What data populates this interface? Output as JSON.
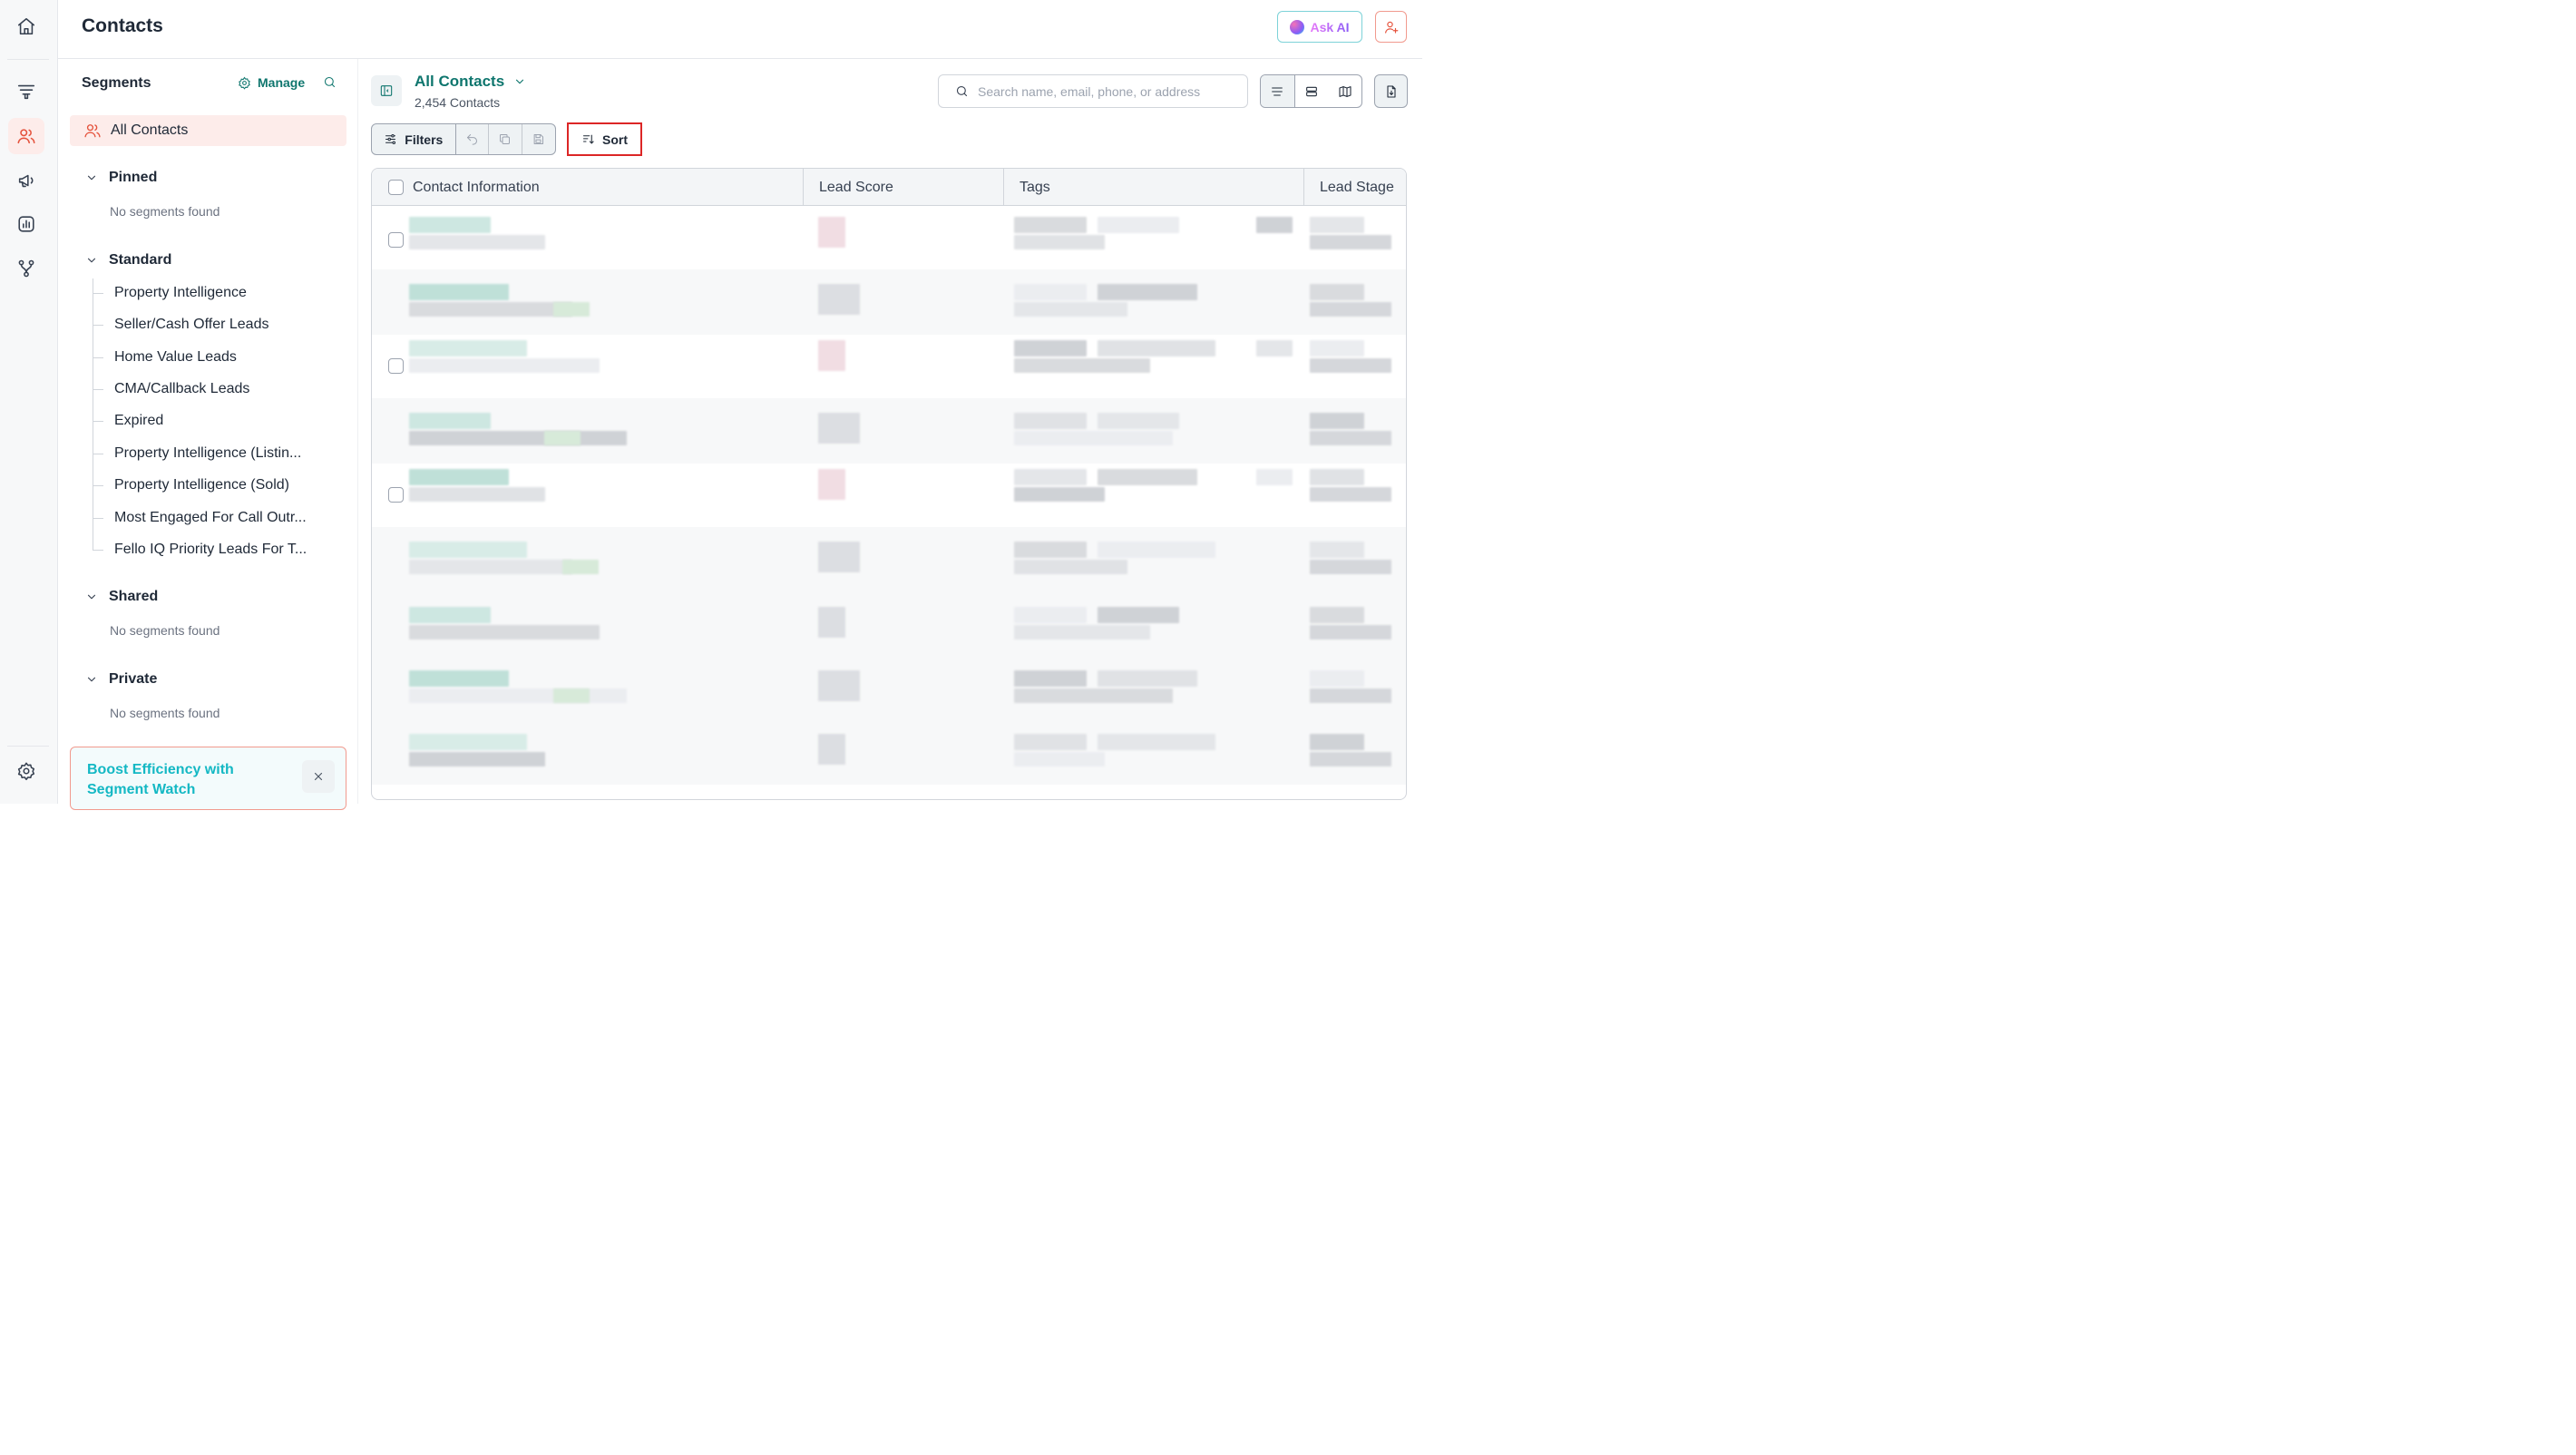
{
  "app": {
    "page_title": "Contacts",
    "ask_ai_label": "Ask AI"
  },
  "segments": {
    "heading": "Segments",
    "manage_label": "Manage",
    "all_contacts_label": "All Contacts",
    "groups": [
      {
        "label": "Pinned",
        "empty_text": "No segments found"
      },
      {
        "label": "Standard",
        "items": [
          "Property Intelligence",
          "Seller/Cash Offer Leads",
          "Home Value Leads",
          "CMA/Callback Leads",
          "Expired",
          "Property Intelligence (Listin...",
          "Property Intelligence (Sold)",
          "Most Engaged For Call Outr...",
          "Fello IQ Priority Leads For T..."
        ]
      },
      {
        "label": "Shared",
        "empty_text": "No segments found"
      },
      {
        "label": "Private",
        "empty_text": "No segments found"
      }
    ],
    "promo": {
      "text": "Boost Efficiency with Segment Watch"
    }
  },
  "main": {
    "view_title": "All Contacts",
    "view_count": "2,454 Contacts",
    "search_placeholder": "Search name, email, phone, or address",
    "filters_label": "Filters",
    "sort_label": "Sort",
    "columns": [
      "Contact Information",
      "Lead Score",
      "Tags",
      "Lead Stage"
    ]
  },
  "colors": {
    "accent_teal": "#0f766e",
    "brand_coral": "#e5533d",
    "highlight_red": "#dc2626"
  },
  "icons": {
    "rail": [
      "home-icon",
      "funnel-icon",
      "contacts-icon",
      "megaphone-icon",
      "report-icon",
      "workflow-icon",
      "settings-icon"
    ]
  }
}
